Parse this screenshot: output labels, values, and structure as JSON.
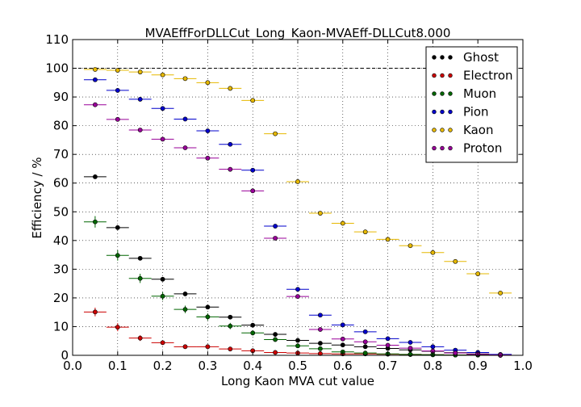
{
  "chart_data": {
    "type": "scatter",
    "title": "MVAEffForDLLCut_Long_Kaon-MVAEff-DLLCut8.000",
    "xlabel": "Long Kaon MVA cut value",
    "ylabel": "Efficiency / %",
    "xlim": [
      0.0,
      1.0
    ],
    "ylim": [
      0,
      110
    ],
    "xticks": [
      "0.0",
      "0.1",
      "0.2",
      "0.3",
      "0.4",
      "0.5",
      "0.6",
      "0.7",
      "0.8",
      "0.9",
      "1.0"
    ],
    "yticks": [
      "0",
      "10",
      "20",
      "30",
      "40",
      "50",
      "60",
      "70",
      "80",
      "90",
      "100",
      "110"
    ],
    "grid": true,
    "legend_position": "top-right",
    "reference_line": 100,
    "x_error_half_width": 0.025,
    "x": [
      0.05,
      0.1,
      0.15,
      0.2,
      0.25,
      0.3,
      0.35,
      0.4,
      0.45,
      0.5,
      0.55,
      0.6,
      0.65,
      0.7,
      0.75,
      0.8,
      0.85,
      0.9,
      0.95
    ],
    "series": [
      {
        "name": "Ghost",
        "color": "#000000",
        "values": [
          62.2,
          44.5,
          33.8,
          26.5,
          21.4,
          16.8,
          13.3,
          10.5,
          7.3,
          5.2,
          4.2,
          3.6,
          3.0,
          2.4,
          1.9,
          1.4,
          0.9,
          0.5,
          0.2
        ],
        "yerr": [
          0.6,
          0.8,
          0.6,
          0.5,
          0.5,
          0.4,
          0.4,
          0.4,
          0.3,
          0.3,
          0.3,
          0.3,
          0.2,
          0.2,
          0.2,
          0.2,
          0.1,
          0.1,
          0.1
        ]
      },
      {
        "name": "Electron",
        "color": "#cc0000",
        "values": [
          15.1,
          9.8,
          6.0,
          4.4,
          3.0,
          3.0,
          2.2,
          1.6,
          1.0,
          0.8,
          0.6,
          0.5,
          0.5,
          0.4,
          0.3,
          0.2,
          0.1,
          0.1,
          0.0
        ],
        "yerr": [
          1.5,
          1.4,
          1.0,
          0.8,
          0.6,
          0.6,
          0.5,
          0.4,
          0.3,
          0.3,
          0.2,
          0.2,
          0.2,
          0.2,
          0.1,
          0.1,
          0.1,
          0.1,
          0.0
        ]
      },
      {
        "name": "Muon",
        "color": "#006600",
        "values": [
          46.5,
          34.8,
          26.8,
          20.6,
          16.0,
          13.4,
          10.2,
          7.8,
          5.5,
          3.3,
          2.3,
          1.2,
          0.8,
          0.5,
          0.3,
          0.2,
          0.1,
          0.1,
          0.0
        ],
        "yerr": [
          2.0,
          1.8,
          1.6,
          1.4,
          1.3,
          1.2,
          1.1,
          0.9,
          0.8,
          0.6,
          0.5,
          0.4,
          0.3,
          0.2,
          0.2,
          0.1,
          0.1,
          0.1,
          0.0
        ]
      },
      {
        "name": "Pion",
        "color": "#0000cc",
        "values": [
          96.0,
          92.3,
          89.2,
          86.0,
          82.3,
          78.2,
          73.5,
          64.5,
          45.0,
          23.0,
          14.0,
          10.6,
          8.2,
          5.8,
          4.5,
          3.0,
          1.8,
          1.0,
          0.3
        ],
        "yerr": [
          0.2,
          0.2,
          0.2,
          0.2,
          0.2,
          0.2,
          0.3,
          0.3,
          0.3,
          0.3,
          0.2,
          0.2,
          0.2,
          0.2,
          0.1,
          0.1,
          0.1,
          0.1,
          0.1
        ]
      },
      {
        "name": "Kaon",
        "color": "#e6b800",
        "values": [
          99.6,
          99.3,
          98.7,
          97.7,
          96.4,
          95.0,
          93.0,
          88.8,
          77.2,
          60.5,
          49.5,
          46.0,
          43.0,
          40.4,
          38.2,
          35.8,
          32.7,
          28.4,
          21.7
        ],
        "yerr": [
          0.1,
          0.1,
          0.1,
          0.1,
          0.1,
          0.1,
          0.1,
          0.2,
          0.2,
          0.3,
          0.3,
          0.3,
          0.3,
          0.3,
          0.3,
          0.3,
          0.3,
          0.3,
          0.3
        ]
      },
      {
        "name": "Proton",
        "color": "#990099",
        "values": [
          87.3,
          82.2,
          78.5,
          75.3,
          72.3,
          68.7,
          64.8,
          57.3,
          40.8,
          20.5,
          9.0,
          5.7,
          4.7,
          3.5,
          2.5,
          1.5,
          0.8,
          0.4,
          0.1
        ],
        "yerr": [
          0.4,
          0.4,
          0.4,
          0.4,
          0.4,
          0.4,
          0.4,
          0.4,
          0.4,
          0.4,
          0.3,
          0.3,
          0.2,
          0.2,
          0.2,
          0.1,
          0.1,
          0.1,
          0.1
        ]
      }
    ]
  }
}
